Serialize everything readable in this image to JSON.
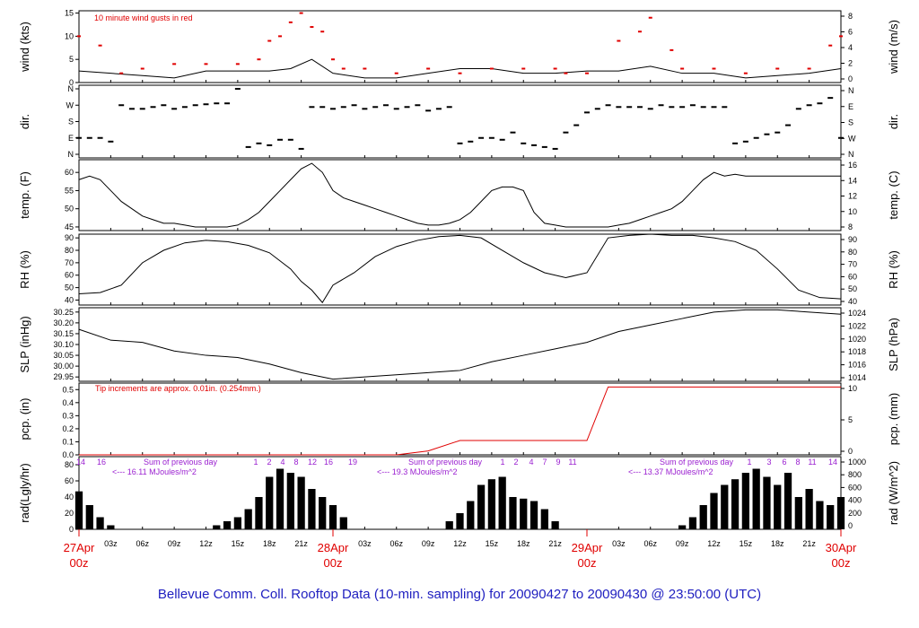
{
  "footer": "Bellevue Comm. Coll. Rooftop Data (10-min. sampling) for 20090427  to  20090430 @ 23:50:00  (UTC)",
  "colors": {
    "accent_red": "#e00000",
    "purple": "#9a1fd0",
    "footer_blue": "#2020c0",
    "line": "#000000"
  },
  "chart_data": [
    {
      "type": "line",
      "panel": "wind",
      "ylabel_left": "wind (kts)",
      "ylabel_right": "wind (m/s)",
      "ylim": [
        0,
        15.5
      ],
      "yticks_left": [
        "0",
        "5",
        "10",
        "15"
      ],
      "yticks_right": [
        "0",
        "2",
        "4",
        "6",
        "8"
      ],
      "annotation": "10  minute wind gusts in red",
      "series": [
        {
          "color": "#000000",
          "x": [
            0,
            3,
            6,
            9,
            12,
            15,
            18,
            20,
            22,
            24,
            27,
            30,
            33,
            36,
            39,
            42,
            45,
            48,
            51,
            54,
            57,
            60,
            63,
            66,
            69,
            72
          ],
          "y": [
            2.5,
            2,
            1.5,
            1,
            2.5,
            2.5,
            2.5,
            3,
            5,
            2,
            1,
            1,
            2,
            3,
            3,
            2,
            2,
            2.5,
            2.5,
            3.5,
            2,
            2,
            1,
            1.5,
            2,
            3
          ]
        },
        {
          "color": "#e00000",
          "style": "dots",
          "x": [
            0,
            2,
            4,
            6,
            9,
            12,
            15,
            17,
            18,
            19,
            20,
            21,
            22,
            23,
            24,
            25,
            27,
            30,
            33,
            36,
            39,
            42,
            45,
            46,
            48,
            51,
            53,
            54,
            56,
            57,
            60,
            63,
            66,
            69,
            71,
            72
          ],
          "y": [
            10,
            8,
            2,
            3,
            4,
            4,
            4,
            5,
            9,
            10,
            13,
            15,
            12,
            11,
            5,
            3,
            3,
            2,
            3,
            2,
            3,
            3,
            3,
            2,
            2,
            9,
            11,
            14,
            7,
            3,
            3,
            2,
            3,
            3,
            8,
            10
          ]
        }
      ]
    },
    {
      "type": "scatter",
      "panel": "dir",
      "ylabel_left": "dir.",
      "ylabel_right": "dir.",
      "yticks": [
        "N",
        "W",
        "S",
        "E",
        "N"
      ],
      "x": [
        0,
        1,
        2,
        3,
        4,
        5,
        6,
        7,
        8,
        9,
        10,
        11,
        12,
        13,
        14,
        15,
        16,
        17,
        18,
        19,
        20,
        21,
        22,
        23,
        24,
        25,
        26,
        27,
        28,
        29,
        30,
        31,
        32,
        33,
        34,
        35,
        36,
        37,
        38,
        39,
        40,
        41,
        42,
        43,
        44,
        45,
        46,
        47,
        48,
        49,
        50,
        51,
        52,
        53,
        54,
        55,
        56,
        57,
        58,
        59,
        60,
        61,
        62,
        63,
        64,
        65,
        66,
        67,
        68,
        69,
        70,
        71,
        72
      ],
      "y": [
        270,
        270,
        270,
        290,
        90,
        110,
        110,
        100,
        90,
        110,
        100,
        90,
        85,
        80,
        80,
        360,
        320,
        300,
        310,
        280,
        280,
        330,
        100,
        100,
        110,
        100,
        90,
        110,
        100,
        90,
        110,
        100,
        90,
        120,
        110,
        100,
        300,
        290,
        270,
        270,
        280,
        240,
        300,
        310,
        320,
        330,
        240,
        200,
        130,
        110,
        90,
        100,
        100,
        100,
        110,
        90,
        100,
        100,
        90,
        100,
        100,
        100,
        300,
        290,
        270,
        250,
        240,
        200,
        110,
        90,
        80,
        50,
        270
      ]
    },
    {
      "type": "line",
      "panel": "temp",
      "ylabel_left": "temp. (F)",
      "ylabel_right": "temp. (C)",
      "ylim": [
        44,
        63.5
      ],
      "yticks_left": [
        "45",
        "50",
        "55",
        "60"
      ],
      "yticks_right": [
        "8",
        "10",
        "12",
        "14",
        "16"
      ],
      "x": [
        0,
        1,
        2,
        3,
        4,
        5,
        6,
        7,
        8,
        9,
        10,
        11,
        12,
        13,
        14,
        15,
        16,
        17,
        18,
        19,
        20,
        21,
        22,
        23,
        24,
        25,
        26,
        27,
        28,
        29,
        30,
        31,
        32,
        33,
        34,
        35,
        36,
        37,
        38,
        39,
        40,
        41,
        42,
        43,
        44,
        45,
        46,
        47,
        48,
        49,
        50,
        51,
        52,
        53,
        54,
        55,
        56,
        57,
        58,
        59,
        60,
        61,
        62,
        63,
        64,
        65,
        66,
        67,
        68,
        69,
        70,
        71,
        72
      ],
      "y": [
        58,
        59,
        58,
        55,
        52,
        50,
        48,
        47,
        46,
        46,
        45.5,
        45,
        45,
        45,
        45,
        45.5,
        47,
        49,
        52,
        55,
        58,
        61,
        62.5,
        60,
        55,
        53,
        52,
        51,
        50,
        49,
        48,
        47,
        46,
        45.5,
        45.5,
        46,
        47,
        49,
        52,
        55,
        56,
        56,
        55,
        49,
        46,
        45.5,
        45,
        45,
        45,
        45,
        45,
        45.5,
        46,
        47,
        48,
        49,
        50,
        52,
        55,
        58,
        60,
        59,
        59.5,
        59,
        59,
        59,
        59,
        59,
        59,
        59,
        59,
        59,
        59
      ]
    },
    {
      "type": "line",
      "panel": "rh",
      "ylabel_left": "RH (%)",
      "ylabel_right": "RH (%)",
      "ylim": [
        36,
        93
      ],
      "yticks": [
        "40",
        "50",
        "60",
        "70",
        "80",
        "90"
      ],
      "x": [
        0,
        2,
        4,
        6,
        8,
        10,
        12,
        14,
        16,
        18,
        20,
        21,
        22,
        23,
        24,
        26,
        28,
        30,
        32,
        34,
        36,
        38,
        40,
        42,
        44,
        46,
        48,
        50,
        52,
        54,
        56,
        58,
        60,
        62,
        64,
        66,
        68,
        70,
        72
      ],
      "y": [
        45,
        46,
        52,
        70,
        80,
        86,
        88,
        87,
        84,
        78,
        65,
        55,
        48,
        38,
        52,
        62,
        75,
        83,
        88,
        91,
        92,
        90,
        80,
        70,
        62,
        58,
        62,
        90,
        92,
        93,
        92,
        92,
        90,
        87,
        80,
        65,
        48,
        42,
        41
      ]
    },
    {
      "type": "line",
      "panel": "slp",
      "ylabel_left": "SLP (inHg)",
      "ylabel_right": "SLP (hPa)",
      "ylim": [
        29.93,
        30.27
      ],
      "yticks_left": [
        "29.95",
        "30.00",
        "30.05",
        "30.10",
        "30.15",
        "30.20",
        "30.25"
      ],
      "yticks_right": [
        "1014",
        "1016",
        "1018",
        "1020",
        "1022",
        "1024"
      ],
      "x": [
        0,
        3,
        6,
        9,
        12,
        15,
        18,
        21,
        24,
        27,
        30,
        33,
        36,
        39,
        42,
        45,
        48,
        51,
        54,
        57,
        60,
        63,
        66,
        69,
        72
      ],
      "y": [
        30.17,
        30.12,
        30.11,
        30.07,
        30.05,
        30.04,
        30.01,
        29.97,
        29.94,
        29.95,
        29.96,
        29.97,
        29.98,
        30.02,
        30.05,
        30.08,
        30.11,
        30.16,
        30.19,
        30.22,
        30.25,
        30.26,
        30.26,
        30.25,
        30.24
      ]
    },
    {
      "type": "line",
      "panel": "pcp",
      "ylabel_left": "pcp. (in)",
      "ylabel_right": "pcp. (mm)",
      "ylim": [
        0,
        0.55
      ],
      "yticks_left": [
        "0.0",
        "0.1",
        "0.2",
        "0.3",
        "0.4",
        "0.5"
      ],
      "yticks_right": [
        "0",
        "5",
        "10"
      ],
      "annotation": "Tip increments are approx. 0.01in. (0.254mm.)",
      "x": [
        0,
        30,
        33,
        36,
        44,
        48,
        50,
        72
      ],
      "y": [
        0,
        0,
        0.03,
        0.11,
        0.11,
        0.11,
        0.52,
        0.52
      ]
    },
    {
      "type": "bar",
      "panel": "rad",
      "ylabel_left": "rad(Lgly/hr)",
      "ylabel_right": "rad (W/m^2)",
      "ylim": [
        0,
        90
      ],
      "yticks_left": [
        "0",
        "20",
        "40",
        "60",
        "80"
      ],
      "yticks_right": [
        "0",
        "200",
        "400",
        "600",
        "800",
        "1000"
      ],
      "x": [
        0,
        1,
        2,
        3,
        4,
        12,
        13,
        14,
        15,
        16,
        17,
        18,
        19,
        20,
        21,
        22,
        23,
        24,
        25,
        26,
        34,
        35,
        36,
        37,
        38,
        39,
        40,
        41,
        42,
        43,
        44,
        45,
        46,
        56,
        57,
        58,
        59,
        60,
        61,
        62,
        63,
        64,
        65,
        66,
        67,
        68,
        69,
        70,
        71,
        72
      ],
      "y": [
        47,
        30,
        15,
        5,
        0,
        0,
        5,
        10,
        15,
        25,
        40,
        65,
        75,
        70,
        65,
        50,
        40,
        30,
        15,
        0,
        0,
        10,
        20,
        35,
        55,
        62,
        65,
        40,
        38,
        35,
        25,
        10,
        0,
        0,
        5,
        15,
        30,
        45,
        55,
        62,
        70,
        75,
        65,
        55,
        70,
        40,
        50,
        35,
        30,
        40
      ],
      "day_sums": [
        "Sum of previous day",
        "<--- 16.11 MJoules/m^2",
        "Sum of previous day",
        "<--- 19.3 MJoules/m^2",
        "Sum of previous day",
        "<--- 13.37 MJoules/m^2"
      ],
      "hour_markers": [
        "14",
        "16",
        "1",
        "2",
        "4",
        "8",
        "12",
        "16",
        "19",
        "1",
        "2",
        "4",
        "7",
        "9",
        "11",
        "1",
        "3",
        "6",
        "8",
        "11",
        "14"
      ]
    }
  ],
  "x_axis": {
    "ticks": [
      "03z",
      "06z",
      "09z",
      "12z",
      "15z",
      "18z",
      "21z",
      "03z",
      "06z",
      "09z",
      "12z",
      "15z",
      "18z",
      "21z",
      "03z",
      "06z",
      "09z",
      "12z",
      "15z",
      "18z",
      "21z"
    ],
    "tick_hours": [
      3,
      6,
      9,
      12,
      15,
      18,
      21,
      27,
      30,
      33,
      36,
      39,
      42,
      45,
      51,
      54,
      57,
      60,
      63,
      66,
      69
    ],
    "days": [
      {
        "line1": "27Apr",
        "line2": "00z",
        "hour": 0
      },
      {
        "line1": "28Apr",
        "line2": "00z",
        "hour": 24
      },
      {
        "line1": "29Apr",
        "line2": "00z",
        "hour": 48
      },
      {
        "line1": "30Apr",
        "line2": "00z",
        "hour": 72
      }
    ]
  }
}
